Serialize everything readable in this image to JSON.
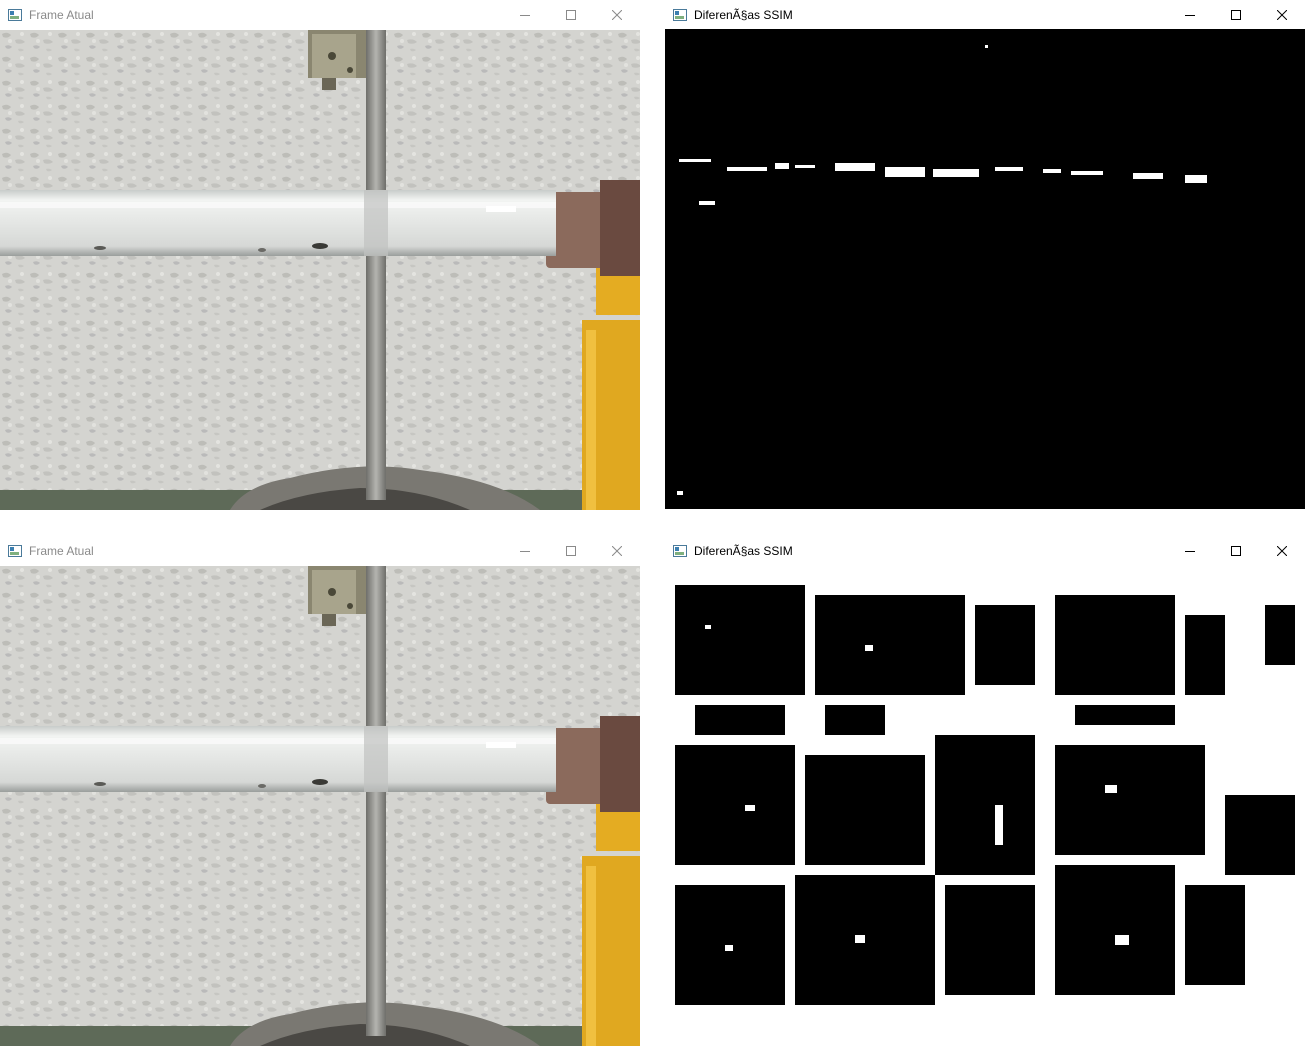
{
  "windows": [
    {
      "id": "frame-top",
      "title": "Frame Atual",
      "focused": false
    },
    {
      "id": "ssim-top",
      "title": "DiferenÃ§as SSIM",
      "focused": true
    },
    {
      "id": "frame-bottom",
      "title": "Frame Atual",
      "focused": false
    },
    {
      "id": "ssim-bottom",
      "title": "DiferenÃ§as SSIM",
      "focused": true
    }
  ],
  "icons": {
    "app": "opencv-window-icon",
    "minimize": "minimize-icon",
    "maximize": "maximize-icon",
    "close": "close-icon"
  },
  "colors": {
    "wall": "#d6d6d2",
    "tube": "#e6e8e6",
    "rod": "#8c8c88",
    "cork": "#8b6a5c",
    "yellow_part": "#e0a820",
    "ssim_background": "#000000",
    "ssim_difference": "#ffffff"
  }
}
